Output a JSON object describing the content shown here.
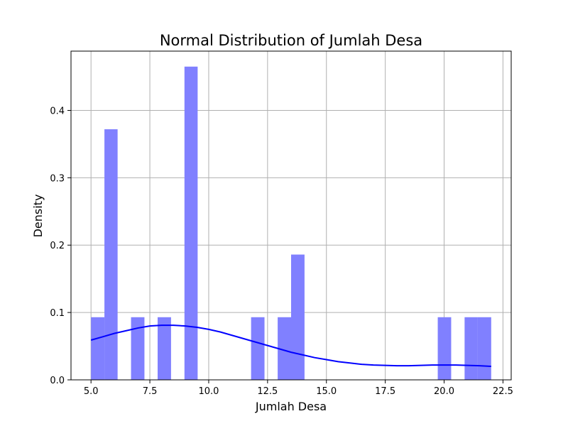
{
  "chart_data": {
    "type": "bar",
    "title": "Normal Distribution of Jumlah Desa",
    "xlabel": "Jumlah Desa",
    "ylabel": "Density",
    "xlim": [
      4.15,
      22.85
    ],
    "ylim": [
      0.0,
      0.488
    ],
    "grid": true,
    "xticks": [
      "5.0",
      "7.5",
      "10.0",
      "12.5",
      "15.0",
      "17.5",
      "20.0",
      "22.5"
    ],
    "yticks": [
      "0.0",
      "0.1",
      "0.2",
      "0.3",
      "0.4"
    ],
    "histogram": {
      "color": "#8080ff",
      "bins": [
        {
          "x0": 5.0,
          "x1": 5.57,
          "density": 0.093
        },
        {
          "x0": 5.57,
          "x1": 6.13,
          "density": 0.372
        },
        {
          "x0": 6.7,
          "x1": 7.27,
          "density": 0.093
        },
        {
          "x0": 7.83,
          "x1": 8.4,
          "density": 0.093
        },
        {
          "x0": 8.97,
          "x1": 9.53,
          "density": 0.465
        },
        {
          "x0": 11.8,
          "x1": 12.37,
          "density": 0.093
        },
        {
          "x0": 12.93,
          "x1": 13.5,
          "density": 0.093
        },
        {
          "x0": 13.5,
          "x1": 14.07,
          "density": 0.186
        },
        {
          "x0": 19.73,
          "x1": 20.3,
          "density": 0.093
        },
        {
          "x0": 20.87,
          "x1": 21.43,
          "density": 0.093
        },
        {
          "x0": 21.43,
          "x1": 22.0,
          "density": 0.093
        }
      ]
    },
    "kde": {
      "color": "#0000ff",
      "x": [
        5.0,
        5.5,
        6.0,
        6.5,
        7.0,
        7.5,
        8.0,
        8.5,
        9.0,
        9.5,
        10.0,
        10.5,
        11.0,
        11.5,
        12.0,
        12.5,
        13.0,
        13.5,
        14.0,
        14.5,
        15.0,
        15.5,
        16.0,
        16.5,
        17.0,
        17.5,
        18.0,
        18.5,
        19.0,
        19.5,
        20.0,
        20.5,
        21.0,
        21.5,
        22.0
      ],
      "y": [
        0.059,
        0.064,
        0.069,
        0.073,
        0.077,
        0.08,
        0.081,
        0.081,
        0.08,
        0.078,
        0.075,
        0.071,
        0.066,
        0.061,
        0.056,
        0.051,
        0.046,
        0.041,
        0.037,
        0.033,
        0.03,
        0.027,
        0.025,
        0.023,
        0.022,
        0.0215,
        0.021,
        0.021,
        0.0215,
        0.022,
        0.022,
        0.022,
        0.0215,
        0.021,
        0.02
      ]
    }
  }
}
